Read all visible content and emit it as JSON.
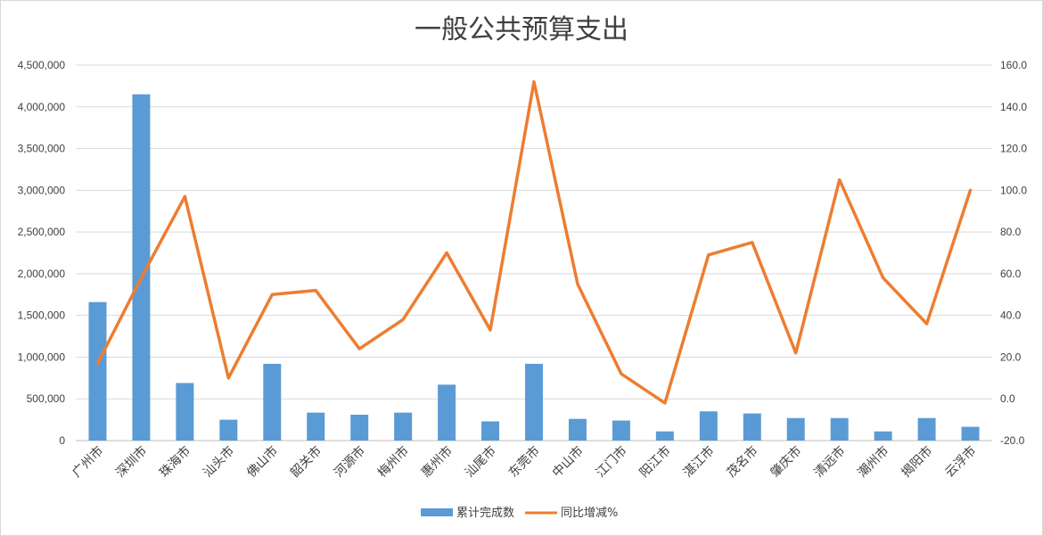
{
  "chart_data": {
    "type": "bar",
    "title": "一般公共预算支出",
    "categories": [
      "广州市",
      "深圳市",
      "珠海市",
      "汕头市",
      "佛山市",
      "韶关市",
      "河源市",
      "梅州市",
      "惠州市",
      "汕尾市",
      "东莞市",
      "中山市",
      "江门市",
      "阳江市",
      "湛江市",
      "茂名市",
      "肇庆市",
      "清远市",
      "潮州市",
      "揭阳市",
      "云浮市"
    ],
    "series": [
      {
        "name": "累计完成数",
        "type": "bar",
        "axis": "left",
        "color": "#5b9bd5",
        "values": [
          1660000,
          4150000,
          690000,
          250000,
          920000,
          335000,
          310000,
          335000,
          670000,
          230000,
          920000,
          260000,
          240000,
          110000,
          350000,
          325000,
          270000,
          270000,
          110000,
          270000,
          165000
        ]
      },
      {
        "name": "同比增减%",
        "type": "line",
        "axis": "right",
        "color": "#ed7d31",
        "values": [
          17.0,
          58.0,
          97.0,
          10.0,
          50.0,
          52.0,
          24.0,
          38.0,
          70.0,
          33.0,
          152.0,
          55.0,
          12.0,
          -2.0,
          69.0,
          75.0,
          22.0,
          105.0,
          58.0,
          36.0,
          100.0
        ]
      }
    ],
    "y_left": {
      "lim": [
        0,
        4500000
      ],
      "ticks": [
        "0",
        "500,000",
        "1,000,000",
        "1,500,000",
        "2,000,000",
        "2,500,000",
        "3,000,000",
        "3,500,000",
        "4,000,000",
        "4,500,000"
      ]
    },
    "y_right": {
      "lim": [
        -20,
        160
      ],
      "ticks": [
        "-20.0",
        "0.0",
        "20.0",
        "40.0",
        "60.0",
        "80.0",
        "100.0",
        "120.0",
        "140.0",
        "160.0"
      ]
    },
    "grid": true,
    "legend_position": "bottom"
  }
}
